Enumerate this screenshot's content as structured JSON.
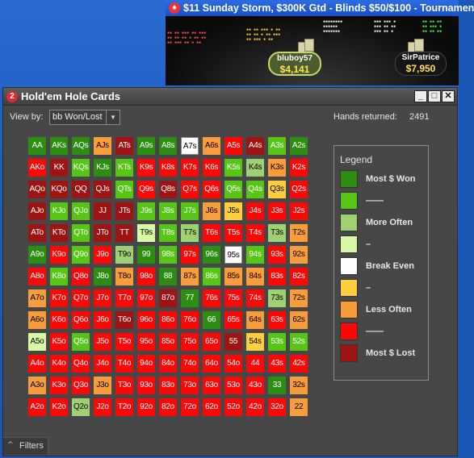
{
  "table_window": {
    "title": "$11 Sunday Storm, $300K Gtd - Blinds $50/$100 - Tournamen",
    "players": [
      {
        "name": "bluboy57",
        "chips": "$4,141"
      },
      {
        "name": "SirPatrice",
        "chips": "$7,950"
      }
    ]
  },
  "window": {
    "title": "Hold'em Hole Cards",
    "icon_text": "2",
    "buttons": {
      "minimize_icon": "minimize-icon",
      "maximize_icon": "maximize-icon",
      "close_icon": "close-icon"
    }
  },
  "toolbar": {
    "view_by_label": "View by:",
    "view_by_value": "bb Won/Lost",
    "hands_label": "Hands returned:",
    "hands_value": "2491"
  },
  "legend": {
    "title": "Legend",
    "items": [
      {
        "label": "Most $ Won",
        "color": "#2c8d12"
      },
      {
        "label": "——",
        "color": "#56c515"
      },
      {
        "label": "More Often",
        "color": "#a0d074"
      },
      {
        "label": "–",
        "color": "#d8f9a6"
      },
      {
        "label": "Break Even",
        "color": "#ffffff"
      },
      {
        "label": "–",
        "color": "#fece3d"
      },
      {
        "label": "Less Often",
        "color": "#f99c3b"
      },
      {
        "label": "——",
        "color": "#fe0707"
      },
      {
        "label": "Most $ Lost",
        "color": "#9d1412"
      }
    ]
  },
  "palette": {
    "G": "#2c8d12",
    "B": "#56c515",
    "L": "#a0d074",
    "P": "#d8f9a6",
    "W": "#ffffff",
    "Y": "#fece3d",
    "O": "#f99c3b",
    "R": "#fe0707",
    "D": "#9d1412"
  },
  "grid": {
    "rows": [
      {
        "hands": [
          "AA",
          "AKs",
          "AQs",
          "AJs",
          "ATs",
          "A9s",
          "A8s",
          "A7s",
          "A6s",
          "A5s",
          "A4s",
          "A3s",
          "A2s"
        ],
        "colors": "GGGODGGWORDBG"
      },
      {
        "hands": [
          "AKo",
          "KK",
          "KQs",
          "KJs",
          "KTs",
          "K9s",
          "K8s",
          "K7s",
          "K6s",
          "K5s",
          "K4s",
          "K3s",
          "K2s"
        ],
        "colors": "RDBGBRRRRBLOR"
      },
      {
        "hands": [
          "AQo",
          "KQo",
          "QQ",
          "QJs",
          "QTs",
          "Q9s",
          "Q8s",
          "Q7s",
          "Q6s",
          "Q5s",
          "Q4s",
          "Q3s",
          "Q2s"
        ],
        "colors": "DDDDBRDRRBBYR"
      },
      {
        "hands": [
          "AJo",
          "KJo",
          "QJo",
          "JJ",
          "JTs",
          "J9s",
          "J8s",
          "J7s",
          "J6s",
          "J5s",
          "J4s",
          "J3s",
          "J2s"
        ],
        "colors": "DBBDDBBBOYRRR"
      },
      {
        "hands": [
          "ATo",
          "KTo",
          "QTo",
          "JTo",
          "TT",
          "T9s",
          "T8s",
          "T7s",
          "T6s",
          "T5s",
          "T4s",
          "T3s",
          "T2s"
        ],
        "colors": "DDBDDPBLRRRLO"
      },
      {
        "hands": [
          "A9o",
          "K9o",
          "Q9o",
          "J9o",
          "T9o",
          "99",
          "98s",
          "97s",
          "96s",
          "95s",
          "94s",
          "93s",
          "92s"
        ],
        "colors": "GRBRLGBRGWBRO"
      },
      {
        "hands": [
          "A8o",
          "K8o",
          "Q8o",
          "J8o",
          "T8o",
          "98o",
          "88",
          "87s",
          "86s",
          "85s",
          "84s",
          "83s",
          "82s"
        ],
        "colors": "RBRGORGOBOORR"
      },
      {
        "hands": [
          "A7o",
          "K7o",
          "Q7o",
          "J7o",
          "T7o",
          "97o",
          "87o",
          "77",
          "76s",
          "75s",
          "74s",
          "73s",
          "72s"
        ],
        "colors": "ORRRRRDGRRRLO"
      },
      {
        "hands": [
          "A6o",
          "K6o",
          "Q6o",
          "J6o",
          "T6o",
          "96o",
          "86o",
          "76o",
          "66",
          "65s",
          "64s",
          "63s",
          "62s"
        ],
        "colors": "ORRRDRRRGRORO"
      },
      {
        "hands": [
          "A5o",
          "K5o",
          "Q5o",
          "J5o",
          "T5o",
          "95o",
          "85o",
          "75o",
          "65o",
          "55",
          "54s",
          "53s",
          "52s"
        ],
        "colors": "PRBRRRRRRDYBB"
      },
      {
        "hands": [
          "A4o",
          "K4o",
          "Q4o",
          "J4o",
          "T4o",
          "94o",
          "84o",
          "74o",
          "64o",
          "54o",
          "44",
          "43s",
          "42s"
        ],
        "colors": "RRRRRRRRRRRRR"
      },
      {
        "hands": [
          "A3o",
          "K3o",
          "Q3o",
          "J3o",
          "T3o",
          "93o",
          "83o",
          "73o",
          "63o",
          "53o",
          "43o",
          "33",
          "32s"
        ],
        "colors": "ORRORRRRRRRGO"
      },
      {
        "hands": [
          "A2o",
          "K2o",
          "Q2o",
          "J2o",
          "T2o",
          "92o",
          "82o",
          "72o",
          "62o",
          "52o",
          "42o",
          "32o",
          "22"
        ],
        "colors": "RRLRRRRRRRRRO"
      }
    ]
  },
  "filters": {
    "label": "Filters"
  }
}
